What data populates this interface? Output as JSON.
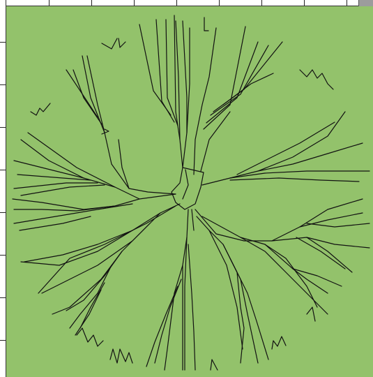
{
  "colors": {
    "canvas": "#93c26b",
    "stroke": "#111111",
    "ruler": "#ffffff",
    "handle": "#9c9c9c"
  },
  "icons": {
    "corner": "resize-handle-icon"
  }
}
